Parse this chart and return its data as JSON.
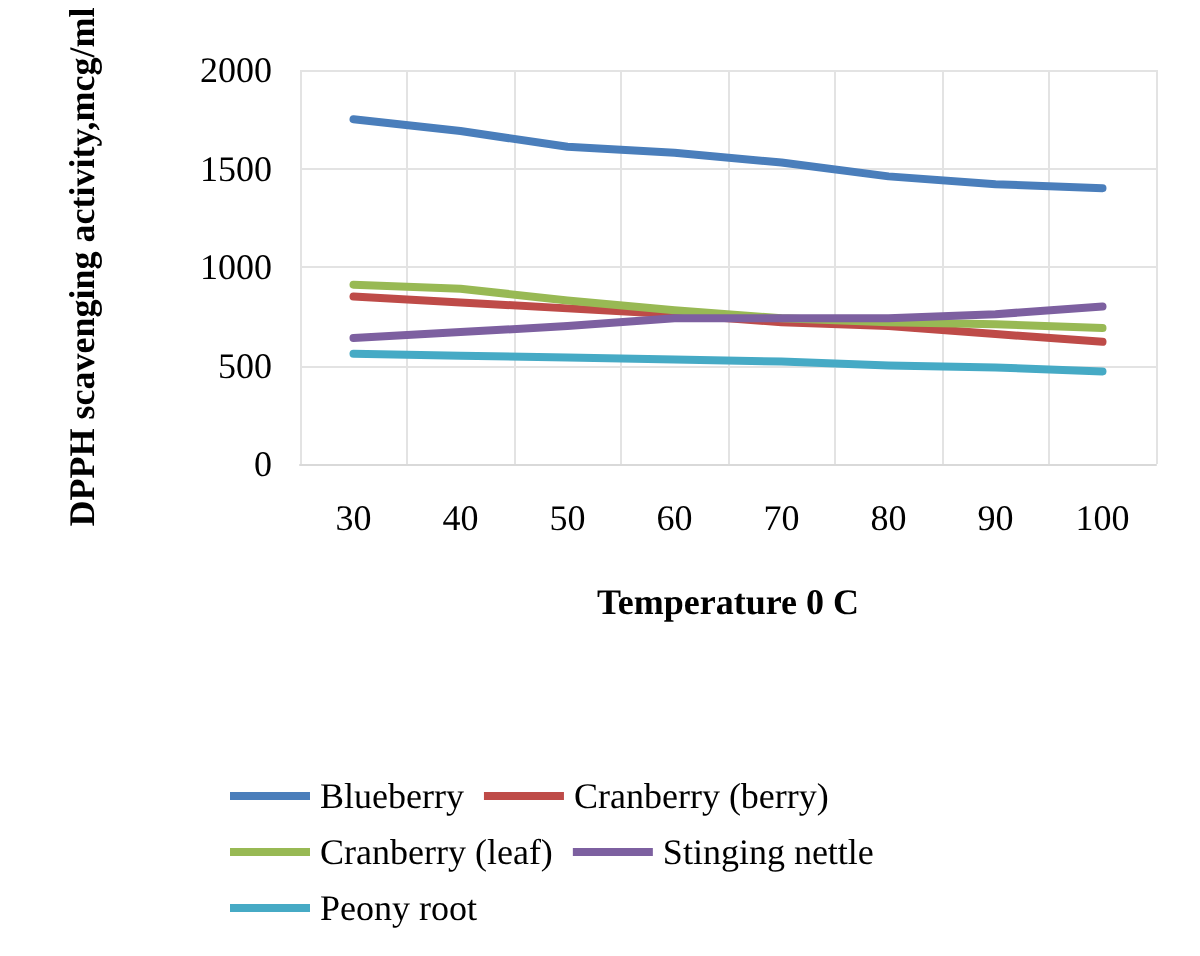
{
  "chart_data": {
    "type": "line",
    "xlabel": "Temperature 0 C",
    "ylabel": "DPPH scavenging activity,mcg/ml",
    "categories": [
      "30",
      "40",
      "50",
      "60",
      "70",
      "80",
      "90",
      "100"
    ],
    "ylim": [
      0,
      2000
    ],
    "yticks": [
      0,
      500,
      1000,
      1500,
      2000
    ],
    "grid": true,
    "legend": "bottom",
    "marker": "none",
    "line_style": "solid",
    "series": [
      {
        "name": "Blueberry",
        "color": "#4a7ebb",
        "values": [
          1750,
          1690,
          1610,
          1580,
          1530,
          1460,
          1420,
          1400
        ]
      },
      {
        "name": "Cranberry (berry)",
        "color": "#be4b48",
        "values": [
          850,
          820,
          790,
          760,
          720,
          700,
          660,
          620
        ]
      },
      {
        "name": "Cranberry (leaf)",
        "color": "#98b954",
        "values": [
          910,
          890,
          830,
          780,
          740,
          720,
          710,
          690
        ]
      },
      {
        "name": "Stinging nettle",
        "color": "#7d60a0",
        "values": [
          640,
          670,
          700,
          740,
          740,
          740,
          760,
          800
        ]
      },
      {
        "name": "Peony root",
        "color": "#46aac5",
        "values": [
          560,
          550,
          540,
          530,
          520,
          500,
          490,
          470
        ]
      }
    ]
  }
}
